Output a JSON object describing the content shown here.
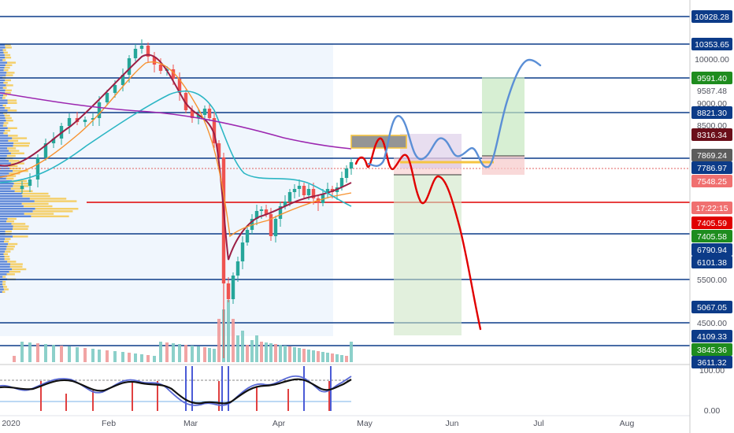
{
  "chart_data": {
    "type": "candlestick",
    "x_ticks": [
      "2020",
      "Feb",
      "Mar",
      "Apr",
      "May",
      "Jun",
      "Jul",
      "Aug"
    ],
    "price_labels": [
      {
        "value": "10928.28",
        "style": "level"
      },
      {
        "value": "10353.65",
        "style": "level"
      },
      {
        "value": "10000.00",
        "style": "plain"
      },
      {
        "value": "9591.40",
        "style": "green"
      },
      {
        "value": "9587.48",
        "style": "plain"
      },
      {
        "value": "9000.00",
        "style": "plain"
      },
      {
        "value": "8821.30",
        "style": "level"
      },
      {
        "value": "8500.00",
        "style": "plain"
      },
      {
        "value": "8316.34",
        "style": "maroon"
      },
      {
        "value": "7869.24",
        "style": "gray"
      },
      {
        "value": "7786.97",
        "style": "level"
      },
      {
        "value": "7548.25",
        "style": "salmon"
      },
      {
        "value": "17:22:15",
        "style": "salmon"
      },
      {
        "value": "7405.59",
        "style": "red"
      },
      {
        "value": "7405.58",
        "style": "green"
      },
      {
        "value": "6790.94",
        "style": "level"
      },
      {
        "value": "6101.38",
        "style": "level"
      },
      {
        "value": "5500.00",
        "style": "plain"
      },
      {
        "value": "5067.05",
        "style": "level"
      },
      {
        "value": "4500.00",
        "style": "plain"
      },
      {
        "value": "4109.33",
        "style": "level"
      },
      {
        "value": "3845.36",
        "style": "green"
      },
      {
        "value": "3611.32",
        "style": "level"
      }
    ],
    "horizontal_levels": [
      10928.28,
      10353.65,
      9591.4,
      8821.3,
      7869.24,
      7405.59,
      6790.94,
      5067.05,
      4109.33,
      3611.32
    ],
    "oscillator": {
      "ticks": [
        "100.00",
        "0.00"
      ],
      "upper_band": 80,
      "lower_band": 20
    },
    "series": [
      {
        "key": "candles",
        "note": "daily BTC candles Jan-Apr 2020",
        "color_up": "#26a69a",
        "color_down": "#ef5350"
      },
      {
        "key": "ma_fast",
        "color": "#9c1f45"
      },
      {
        "key": "ma_mid",
        "color": "#f7922f"
      },
      {
        "key": "ma_slow",
        "color": "#2bb6c4"
      },
      {
        "key": "ma_long",
        "color": "#9c27b0"
      }
    ],
    "projections": [
      {
        "key": "bearish-path",
        "color": "#e00000"
      },
      {
        "key": "bullish-path",
        "color": "#5b8fd6"
      }
    ]
  },
  "colors": {
    "level": "#0c3b88",
    "green": "#1e8c1e",
    "red": "#e00000",
    "maroon": "#6b0f1a",
    "gray": "#5c5c5c",
    "salmon": "#f07070"
  }
}
